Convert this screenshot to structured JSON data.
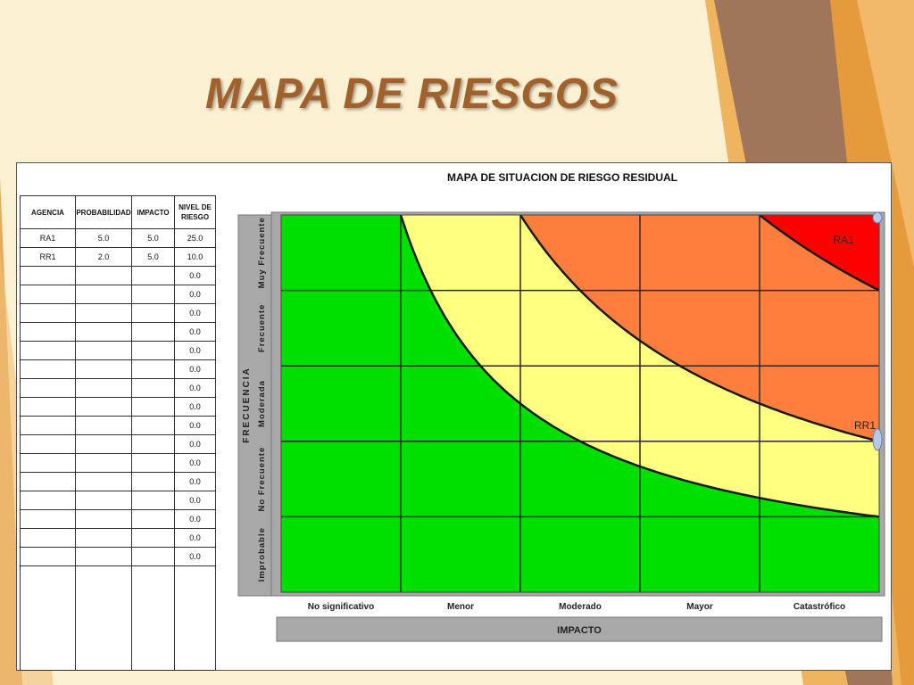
{
  "slide_title": "MAPA DE RIESGOS",
  "table": {
    "headers": [
      "AGENCIA",
      "PROBABILIDAD",
      "IMPACTO",
      "NIVEL DE RIESGO"
    ],
    "rows": [
      [
        "RA1",
        "5.0",
        "5.0",
        "25.0"
      ],
      [
        "RR1",
        "2.0",
        "5.0",
        "10.0"
      ],
      [
        "",
        "",
        "",
        "0.0"
      ],
      [
        "",
        "",
        "",
        "0.0"
      ],
      [
        "",
        "",
        "",
        "0.0"
      ],
      [
        "",
        "",
        "",
        "0.0"
      ],
      [
        "",
        "",
        "",
        "0.0"
      ],
      [
        "",
        "",
        "",
        "0.0"
      ],
      [
        "",
        "",
        "",
        "0.0"
      ],
      [
        "",
        "",
        "",
        "0.0"
      ],
      [
        "",
        "",
        "",
        "0.0"
      ],
      [
        "",
        "",
        "",
        "0.0"
      ],
      [
        "",
        "",
        "",
        "0.0"
      ],
      [
        "",
        "",
        "",
        "0.0"
      ],
      [
        "",
        "",
        "",
        "0.0"
      ],
      [
        "",
        "",
        "",
        "0.0"
      ],
      [
        "",
        "",
        "",
        "0.0"
      ],
      [
        "",
        "",
        "",
        "0.0"
      ]
    ]
  },
  "chart_data": {
    "type": "heatmap",
    "title": "MAPA DE SITUACION DE RIESGO RESIDUAL",
    "xlabel": "IMPACTO",
    "ylabel": "FRECUENCIA",
    "x_categories": [
      "No significativo",
      "Menor",
      "Moderado",
      "Mayor",
      "Catastrófico"
    ],
    "y_categories": [
      "Improbable",
      "No Frecuente",
      "Moderada",
      "Frecuente",
      "Muy Frecuente"
    ],
    "xlim": [
      0,
      5
    ],
    "ylim": [
      0,
      5
    ],
    "grid": true,
    "zone_colors": [
      "#00e000",
      "#ffff80",
      "#ff7e3e",
      "#ff0000"
    ],
    "zone_boundaries": [
      {
        "name": "green-yellow",
        "k": 5
      },
      {
        "name": "yellow-orange",
        "k": 10
      },
      {
        "name": "orange-red",
        "k": 20
      }
    ],
    "points": [
      {
        "label": "RA1",
        "x": 5.0,
        "y": 5.0
      },
      {
        "label": "RR1",
        "x": 5.0,
        "y": 2.0
      }
    ]
  }
}
